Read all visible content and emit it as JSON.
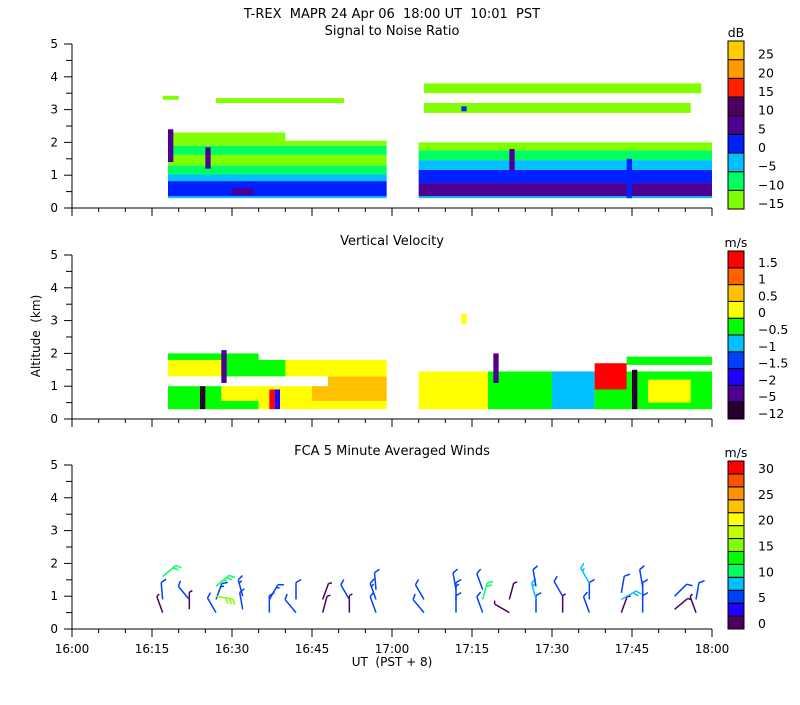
{
  "header": {
    "title": "T-REX  MAPR 24 Apr 06  18:00 UT  10:01  PST"
  },
  "chart_data": [
    {
      "type": "heatmap",
      "title": "Signal to Noise Ratio",
      "xlabel": "",
      "ylabel": "",
      "xlim": [
        "16:00",
        "18:00"
      ],
      "ylim": [
        0,
        5
      ],
      "y_tick_labels": [
        "0",
        "1",
        "2",
        "3",
        "4",
        "5"
      ],
      "colorbar": {
        "unit": "dB",
        "levels": [
          -15,
          -10,
          -5,
          0,
          5,
          10,
          15,
          20,
          25
        ],
        "labels": [
          "−15",
          "−10",
          "−5",
          "0",
          "5",
          "10",
          "15",
          "20",
          "25"
        ],
        "colors": [
          "#80ff00",
          "#00ff60",
          "#00c0ff",
          "#0020ff",
          "#500090",
          "#4c0060",
          "#ff2000",
          "#ff9900",
          "#ffcc00"
        ]
      },
      "cells_columns": [
        "t_start",
        "t_end",
        "alt_low_km",
        "alt_high_km",
        "value"
      ],
      "cells": [
        [
          "16:18",
          "16:59",
          0.3,
          0.36,
          -2
        ],
        [
          "16:18",
          "16:59",
          0.36,
          0.82,
          3
        ],
        [
          "16:30",
          "16:34",
          0.4,
          0.6,
          8
        ],
        [
          "16:18",
          "16:59",
          0.82,
          1.02,
          -2
        ],
        [
          "16:18",
          "16:59",
          1.02,
          1.3,
          -7
        ],
        [
          "16:18",
          "16:59",
          1.3,
          1.62,
          -12
        ],
        [
          "16:18",
          "16:59",
          1.62,
          1.9,
          -7
        ],
        [
          "16:18",
          "16:40",
          1.9,
          2.3,
          -12
        ],
        [
          "16:40",
          "16:59",
          1.9,
          2.05,
          -12
        ],
        [
          "16:18",
          "16:19",
          1.4,
          2.4,
          8
        ],
        [
          "16:25",
          "16:26",
          1.2,
          1.85,
          8
        ],
        [
          "16:27",
          "16:51",
          3.2,
          3.35,
          -12
        ],
        [
          "16:17",
          "16:20",
          3.3,
          3.42,
          -12
        ],
        [
          "17:05",
          "18:00",
          0.3,
          0.36,
          -2
        ],
        [
          "17:05",
          "18:00",
          0.36,
          0.76,
          8
        ],
        [
          "17:05",
          "18:00",
          0.76,
          1.16,
          3
        ],
        [
          "17:05",
          "18:00",
          1.16,
          1.46,
          -2
        ],
        [
          "17:05",
          "18:00",
          1.46,
          1.76,
          -7
        ],
        [
          "17:05",
          "18:00",
          1.76,
          2.0,
          -12
        ],
        [
          "17:22",
          "17:23",
          1.15,
          1.8,
          8
        ],
        [
          "17:44",
          "17:45",
          0.3,
          1.5,
          3
        ],
        [
          "17:06",
          "17:56",
          2.9,
          3.2,
          -12
        ],
        [
          "17:06",
          "17:58",
          3.5,
          3.8,
          -12
        ],
        [
          "17:13",
          "17:14",
          2.95,
          3.1,
          3
        ]
      ]
    },
    {
      "type": "heatmap",
      "title": "Vertical Velocity",
      "xlabel": "",
      "ylabel": "Altitude  (km)",
      "xlim": [
        "16:00",
        "18:00"
      ],
      "ylim": [
        0,
        5
      ],
      "y_tick_labels": [
        "0",
        "1",
        "2",
        "3",
        "4",
        "5"
      ],
      "colorbar": {
        "unit": "m/s",
        "levels": [
          -12,
          -5,
          -2,
          -1.5,
          -1,
          -0.5,
          0,
          0.5,
          1,
          1.5
        ],
        "labels": [
          "−12",
          "−5",
          "−2",
          "−1.5",
          "−1",
          "−0.5",
          "0",
          "0.5",
          "1",
          "1.5"
        ],
        "colors": [
          "#2a0030",
          "#500090",
          "#2000ff",
          "#0040ff",
          "#00c0ff",
          "#00ff00",
          "#ffff00",
          "#ffc000",
          "#ff6000",
          "#ff0000"
        ]
      },
      "cells_columns": [
        "t_start",
        "t_end",
        "alt_low_km",
        "alt_high_km",
        "value"
      ],
      "cells": [
        [
          "16:18",
          "16:35",
          0.3,
          0.55,
          -0.2
        ],
        [
          "16:35",
          "16:59",
          0.3,
          0.55,
          0.2
        ],
        [
          "16:18",
          "16:28",
          0.55,
          1.0,
          -0.2
        ],
        [
          "16:28",
          "16:59",
          0.55,
          1.0,
          0.2
        ],
        [
          "16:45",
          "16:59",
          0.55,
          1.0,
          0.8
        ],
        [
          "16:48",
          "16:59",
          1.0,
          1.3,
          0.8
        ],
        [
          "16:18",
          "16:59",
          1.3,
          1.8,
          0.2
        ],
        [
          "16:28",
          "16:40",
          1.3,
          1.8,
          -0.2
        ],
        [
          "16:18",
          "16:35",
          1.8,
          2.0,
          -0.2
        ],
        [
          "16:24",
          "16:25",
          0.3,
          1.0,
          -8
        ],
        [
          "16:37",
          "16:38",
          0.3,
          0.9,
          1.8
        ],
        [
          "16:38",
          "16:39",
          0.3,
          0.9,
          -1.8
        ],
        [
          "16:28",
          "16:29",
          1.1,
          2.1,
          -3
        ],
        [
          "17:05",
          "17:18",
          0.3,
          1.45,
          0.2
        ],
        [
          "17:18",
          "17:30",
          0.3,
          1.45,
          -0.2
        ],
        [
          "17:30",
          "17:38",
          0.3,
          1.45,
          -0.8
        ],
        [
          "17:38",
          "18:00",
          0.3,
          1.45,
          -0.2
        ],
        [
          "17:48",
          "17:56",
          0.5,
          1.2,
          0.2
        ],
        [
          "17:38",
          "17:44",
          0.9,
          1.7,
          1.8
        ],
        [
          "17:44",
          "18:00",
          1.65,
          1.9,
          -0.2
        ],
        [
          "17:19",
          "17:20",
          1.1,
          2.0,
          -3
        ],
        [
          "17:45",
          "17:46",
          0.3,
          1.5,
          -8
        ],
        [
          "17:13",
          "17:14",
          2.9,
          3.2,
          0.2
        ]
      ]
    },
    {
      "type": "barbs",
      "title": "FCA 5 Minute Averaged Winds",
      "xlabel": "UT  (PST + 8)",
      "ylabel": "",
      "xlim": [
        "16:00",
        "18:00"
      ],
      "ylim": [
        0,
        5
      ],
      "y_tick_labels": [
        "0",
        "1",
        "2",
        "3",
        "4",
        "5"
      ],
      "x_tick_labels": [
        "16:00",
        "16:15",
        "16:30",
        "16:45",
        "17:00",
        "17:15",
        "17:30",
        "17:45",
        "18:00"
      ],
      "colorbar": {
        "unit": "m/s",
        "levels": [
          0,
          2.5,
          5,
          7.5,
          10,
          12.5,
          15,
          17.5,
          20,
          22.5,
          25,
          27.5,
          30
        ],
        "labels": [
          "0",
          "",
          "5",
          "",
          "10",
          "",
          "15",
          "",
          "20",
          "",
          "25",
          "",
          "30"
        ],
        "colors": [
          "#4c0060",
          "#2000ff",
          "#0040ff",
          "#00c0ff",
          "#00ff60",
          "#00ff00",
          "#80ff00",
          "#c0ff00",
          "#ffff00",
          "#ffc000",
          "#ff9000",
          "#ff5000",
          "#ff0000"
        ]
      },
      "barbs_columns": [
        "time",
        "alt_km",
        "direction_deg",
        "speed_ms"
      ],
      "barbs": [
        [
          "16:17",
          0.5,
          340,
          2
        ],
        [
          "16:17",
          0.9,
          355,
          6
        ],
        [
          "16:17",
          1.6,
          50,
          11
        ],
        [
          "16:22",
          0.6,
          0,
          2
        ],
        [
          "16:22",
          0.9,
          320,
          6
        ],
        [
          "16:27",
          0.5,
          330,
          5
        ],
        [
          "16:27",
          0.9,
          20,
          7
        ],
        [
          "16:27",
          1.3,
          50,
          12
        ],
        [
          "16:27",
          1.0,
          100,
          16
        ],
        [
          "16:32",
          0.6,
          350,
          6
        ],
        [
          "16:32",
          1.0,
          345,
          7
        ],
        [
          "16:37",
          0.5,
          0,
          6
        ],
        [
          "16:37",
          0.9,
          30,
          7
        ],
        [
          "16:42",
          0.5,
          320,
          6
        ],
        [
          "16:42",
          0.9,
          0,
          5
        ],
        [
          "16:47",
          0.5,
          15,
          2
        ],
        [
          "16:47",
          0.9,
          20,
          2
        ],
        [
          "16:52",
          0.5,
          0,
          2
        ],
        [
          "16:52",
          0.9,
          330,
          6
        ],
        [
          "16:57",
          0.5,
          340,
          6
        ],
        [
          "16:57",
          0.9,
          340,
          7
        ],
        [
          "16:57",
          1.2,
          355,
          6
        ],
        [
          "17:06",
          0.5,
          320,
          6
        ],
        [
          "17:06",
          0.9,
          330,
          6
        ],
        [
          "17:12",
          0.5,
          0,
          6
        ],
        [
          "17:12",
          0.9,
          0,
          7
        ],
        [
          "17:12",
          1.2,
          350,
          6
        ],
        [
          "17:17",
          0.5,
          340,
          6
        ],
        [
          "17:17",
          0.9,
          15,
          11
        ],
        [
          "17:17",
          1.2,
          340,
          6
        ],
        [
          "17:22",
          0.5,
          300,
          2
        ],
        [
          "17:22",
          0.9,
          15,
          2
        ],
        [
          "17:27",
          0.5,
          0,
          6
        ],
        [
          "17:27",
          0.9,
          345,
          8
        ],
        [
          "17:27",
          1.3,
          350,
          6
        ],
        [
          "17:32",
          0.5,
          0,
          2
        ],
        [
          "17:32",
          1.0,
          330,
          6
        ],
        [
          "17:37",
          0.5,
          340,
          6
        ],
        [
          "17:37",
          0.9,
          0,
          6
        ],
        [
          "17:37",
          1.4,
          330,
          8
        ],
        [
          "17:43",
          0.5,
          20,
          2
        ],
        [
          "17:43",
          0.9,
          60,
          9
        ],
        [
          "17:43",
          1.1,
          10,
          6
        ],
        [
          "17:47",
          0.5,
          0,
          6
        ],
        [
          "17:47",
          0.9,
          0,
          6
        ],
        [
          "17:47",
          1.3,
          350,
          6
        ],
        [
          "17:53",
          0.6,
          50,
          2
        ],
        [
          "17:53",
          1.0,
          45,
          6
        ],
        [
          "17:57",
          0.5,
          340,
          2
        ],
        [
          "17:57",
          0.9,
          10,
          6
        ]
      ]
    }
  ]
}
